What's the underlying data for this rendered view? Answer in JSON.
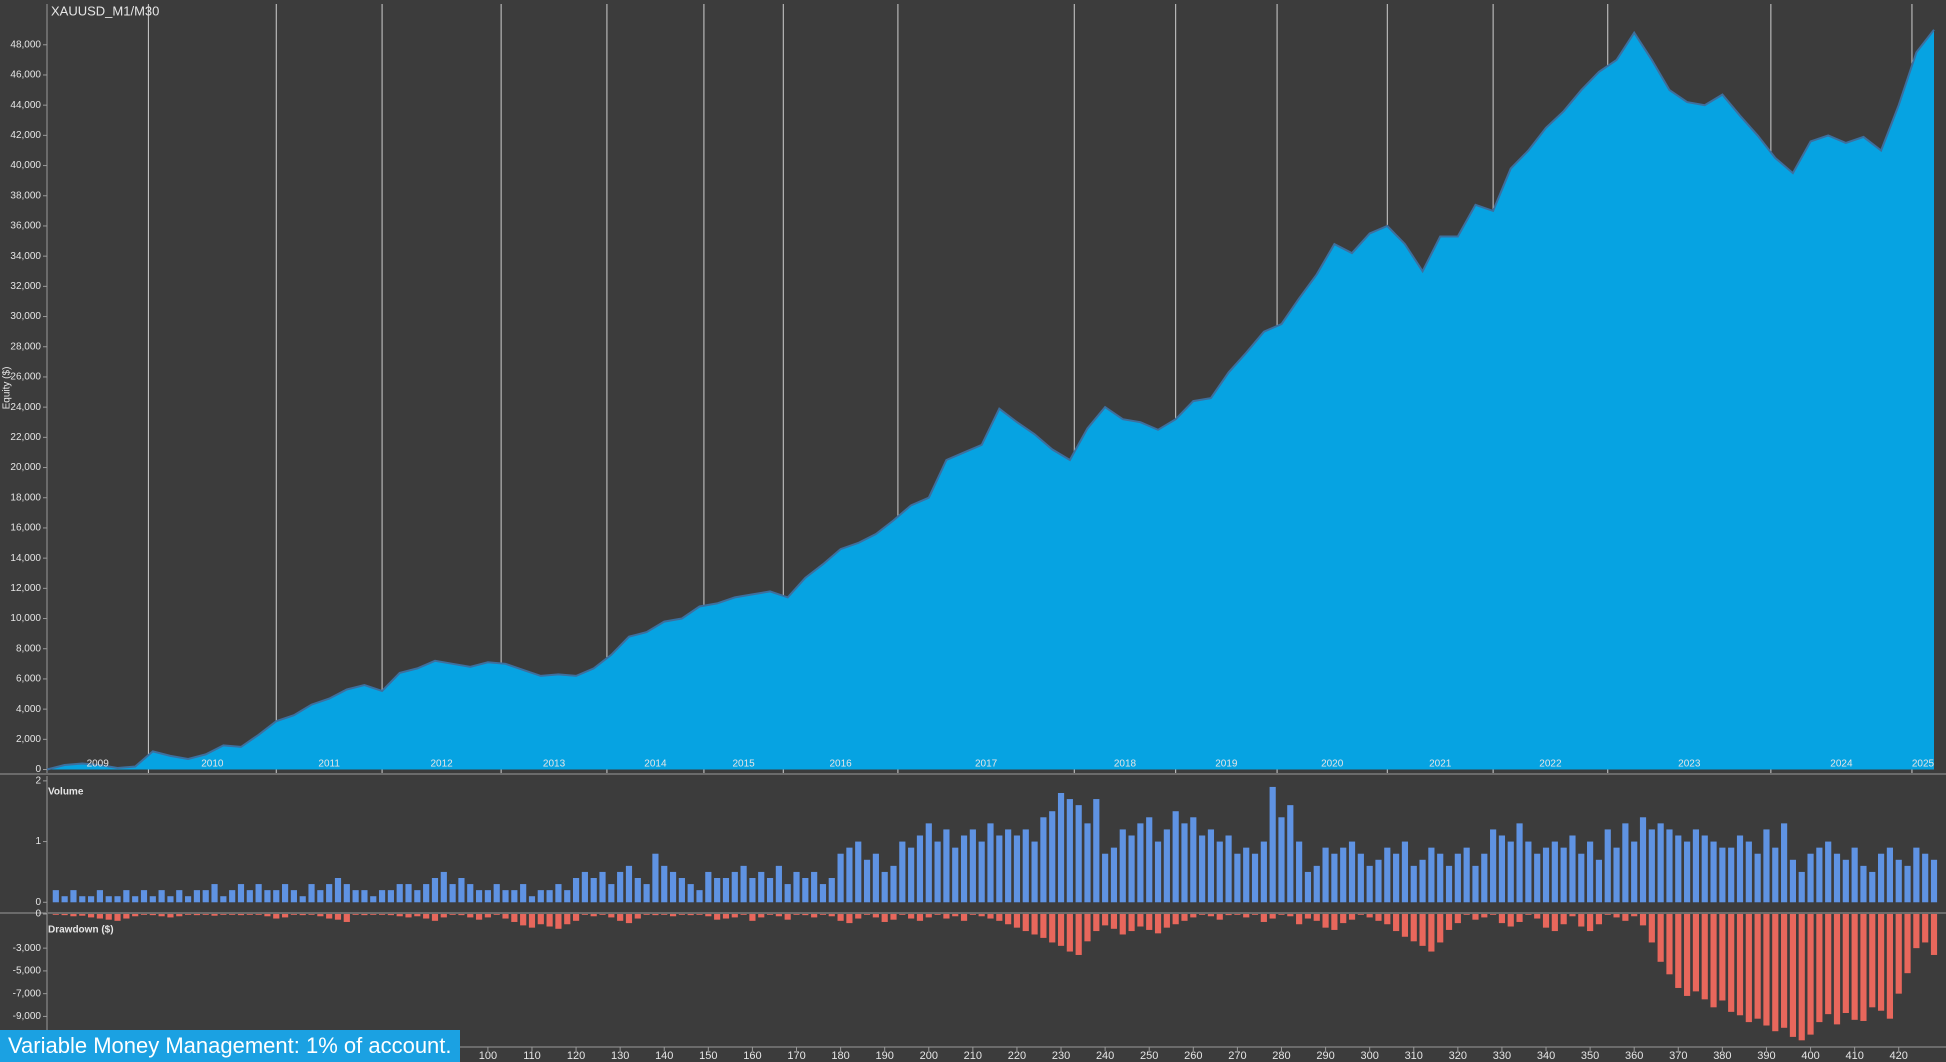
{
  "chart_data": [
    {
      "type": "area",
      "title": "XAUUSD_M1/M30",
      "y_label": "Equity ($)",
      "color": "#06a3e2",
      "line_color": "#3d6f9e",
      "xlim": [
        0,
        428
      ],
      "ylim": [
        -230,
        50700
      ],
      "yticks": [
        0,
        {
          "value": 2000,
          "label": "2,000"
        },
        {
          "value": 4000,
          "label": "4,000"
        },
        {
          "value": 6000,
          "label": "6,000"
        },
        {
          "value": 8000,
          "label": "8,000"
        },
        {
          "value": 10000,
          "label": "10,000"
        },
        {
          "value": 12000,
          "label": "12,000"
        },
        {
          "value": 14000,
          "label": "14,000"
        },
        {
          "value": 16000,
          "label": "16,000"
        },
        {
          "value": 18000,
          "label": "18,000"
        },
        {
          "value": 20000,
          "label": "20,000"
        },
        {
          "value": 22000,
          "label": "22,000"
        },
        {
          "value": 24000,
          "label": "24,000"
        },
        {
          "value": 26000,
          "label": "26,000"
        },
        {
          "value": 28000,
          "label": "28,000"
        },
        {
          "value": 30000,
          "label": "30,000"
        },
        {
          "value": 32000,
          "label": "32,000"
        },
        {
          "value": 34000,
          "label": "34,000"
        },
        {
          "value": 36000,
          "label": "36,000"
        },
        {
          "value": 38000,
          "label": "38,000"
        },
        {
          "value": 40000,
          "label": "40,000"
        },
        {
          "value": 42000,
          "label": "42,000"
        },
        {
          "value": 44000,
          "label": "44,000"
        },
        {
          "value": 46000,
          "label": "46,000"
        },
        {
          "value": 48000,
          "label": "48,000"
        }
      ],
      "years": [
        "2009",
        "2010",
        "2011",
        "2012",
        "2013",
        "2014",
        "2015",
        "2016",
        "2017",
        "2018",
        "2019",
        "2020",
        "2021",
        "2022",
        "2023",
        "2024",
        "2025"
      ],
      "year_starts": [
        23,
        52,
        76,
        103,
        127,
        149,
        167,
        193,
        233,
        256,
        279,
        304,
        328,
        354,
        391,
        423
      ],
      "x": [
        0,
        4,
        8,
        12,
        16,
        20,
        24,
        28,
        32,
        36,
        40,
        44,
        48,
        52,
        56,
        60,
        64,
        68,
        72,
        76,
        80,
        84,
        88,
        92,
        96,
        100,
        104,
        108,
        112,
        116,
        120,
        124,
        128,
        132,
        136,
        140,
        144,
        148,
        152,
        156,
        160,
        164,
        168,
        172,
        176,
        180,
        184,
        188,
        192,
        196,
        200,
        204,
        208,
        212,
        216,
        220,
        224,
        228,
        232,
        236,
        240,
        244,
        248,
        252,
        256,
        260,
        264,
        268,
        272,
        276,
        280,
        284,
        288,
        292,
        296,
        300,
        304,
        308,
        312,
        316,
        320,
        324,
        328,
        332,
        336,
        340,
        344,
        348,
        352,
        356,
        360,
        364,
        368,
        372,
        376,
        380,
        384,
        388,
        392,
        396,
        400,
        404,
        408,
        412,
        416,
        420,
        424,
        428
      ],
      "values": [
        0,
        300,
        400,
        300,
        100,
        200,
        1200,
        900,
        700,
        1000,
        1600,
        1500,
        2300,
        3200,
        3600,
        4300,
        4700,
        5300,
        5600,
        5200,
        6400,
        6700,
        7200,
        7000,
        6800,
        7100,
        7000,
        6600,
        6200,
        6300,
        6200,
        6700,
        7600,
        8800,
        9100,
        9800,
        10000,
        10800,
        11000,
        11400,
        11600,
        11800,
        11400,
        12700,
        13600,
        14600,
        15000,
        15600,
        16500,
        17500,
        18000,
        20500,
        21000,
        21500,
        23900,
        23000,
        22200,
        21200,
        20500,
        22600,
        24000,
        23200,
        23000,
        22500,
        23200,
        24400,
        24600,
        26300,
        27600,
        29000,
        29500,
        31200,
        32800,
        34800,
        34200,
        35500,
        36000,
        34800,
        33000,
        35300,
        35300,
        37400,
        37000,
        39800,
        41000,
        42500,
        43600,
        45000,
        46200,
        47000,
        48800,
        47000,
        45000,
        44200,
        44000,
        44700,
        43300,
        42000,
        40500,
        39500,
        41600,
        42000,
        41500,
        41900,
        41000,
        44000,
        47500,
        49000
      ]
    },
    {
      "type": "bar",
      "title": "Volume",
      "color": "#5f93e3",
      "xlim": [
        0,
        428
      ],
      "ylim": [
        -0.16,
        2.08
      ],
      "yticks": [
        0,
        1,
        2
      ],
      "x": [
        2,
        4,
        6,
        8,
        10,
        12,
        14,
        16,
        18,
        20,
        22,
        24,
        26,
        28,
        30,
        32,
        34,
        36,
        38,
        40,
        42,
        44,
        46,
        48,
        50,
        52,
        54,
        56,
        58,
        60,
        62,
        64,
        66,
        68,
        70,
        72,
        74,
        76,
        78,
        80,
        82,
        84,
        86,
        88,
        90,
        92,
        94,
        96,
        98,
        100,
        102,
        104,
        106,
        108,
        110,
        112,
        114,
        116,
        118,
        120,
        122,
        124,
        126,
        128,
        130,
        132,
        134,
        136,
        138,
        140,
        142,
        144,
        146,
        148,
        150,
        152,
        154,
        156,
        158,
        160,
        162,
        164,
        166,
        168,
        170,
        172,
        174,
        176,
        178,
        180,
        182,
        184,
        186,
        188,
        190,
        192,
        194,
        196,
        198,
        200,
        202,
        204,
        206,
        208,
        210,
        212,
        214,
        216,
        218,
        220,
        222,
        224,
        226,
        228,
        230,
        232,
        234,
        236,
        238,
        240,
        242,
        244,
        246,
        248,
        250,
        252,
        254,
        256,
        258,
        260,
        262,
        264,
        266,
        268,
        270,
        272,
        274,
        276,
        278,
        280,
        282,
        284,
        286,
        288,
        290,
        292,
        294,
        296,
        298,
        300,
        302,
        304,
        306,
        308,
        310,
        312,
        314,
        316,
        318,
        320,
        322,
        324,
        326,
        328,
        330,
        332,
        334,
        336,
        338,
        340,
        342,
        344,
        346,
        348,
        350,
        352,
        354,
        356,
        358,
        360,
        362,
        364,
        366,
        368,
        370,
        372,
        374,
        376,
        378,
        380,
        382,
        384,
        386,
        388,
        390,
        392,
        394,
        396,
        398,
        400,
        402,
        404,
        406,
        408,
        410,
        412,
        414,
        416,
        418,
        420,
        422,
        424,
        426,
        428
      ],
      "values": [
        0.2,
        0.1,
        0.2,
        0.1,
        0.1,
        0.2,
        0.1,
        0.1,
        0.2,
        0.1,
        0.2,
        0.1,
        0.2,
        0.1,
        0.2,
        0.1,
        0.2,
        0.2,
        0.3,
        0.1,
        0.2,
        0.3,
        0.2,
        0.3,
        0.2,
        0.2,
        0.3,
        0.2,
        0.1,
        0.3,
        0.2,
        0.3,
        0.4,
        0.3,
        0.2,
        0.2,
        0.1,
        0.2,
        0.2,
        0.3,
        0.3,
        0.2,
        0.3,
        0.4,
        0.5,
        0.3,
        0.4,
        0.3,
        0.2,
        0.2,
        0.3,
        0.2,
        0.2,
        0.3,
        0.1,
        0.2,
        0.2,
        0.3,
        0.2,
        0.4,
        0.5,
        0.4,
        0.5,
        0.3,
        0.5,
        0.6,
        0.4,
        0.3,
        0.8,
        0.6,
        0.5,
        0.4,
        0.3,
        0.2,
        0.5,
        0.4,
        0.4,
        0.5,
        0.6,
        0.4,
        0.5,
        0.4,
        0.6,
        0.3,
        0.5,
        0.4,
        0.5,
        0.3,
        0.4,
        0.8,
        0.9,
        1.0,
        0.7,
        0.8,
        0.5,
        0.6,
        1.0,
        0.9,
        1.1,
        1.3,
        1.0,
        1.2,
        0.9,
        1.1,
        1.2,
        1.0,
        1.3,
        1.1,
        1.2,
        1.1,
        1.2,
        1.0,
        1.4,
        1.5,
        1.8,
        1.7,
        1.6,
        1.3,
        1.7,
        0.8,
        0.9,
        1.2,
        1.1,
        1.3,
        1.4,
        1.0,
        1.2,
        1.5,
        1.3,
        1.4,
        1.1,
        1.2,
        1.0,
        1.1,
        0.8,
        0.9,
        0.8,
        1.0,
        1.9,
        1.4,
        1.6,
        1.0,
        0.5,
        0.6,
        0.9,
        0.8,
        0.9,
        1.0,
        0.8,
        0.6,
        0.7,
        0.9,
        0.8,
        1.0,
        0.6,
        0.7,
        0.9,
        0.8,
        0.6,
        0.8,
        0.9,
        0.6,
        0.8,
        1.2,
        1.1,
        1.0,
        1.3,
        1.0,
        0.8,
        0.9,
        1.0,
        0.9,
        1.1,
        0.8,
        1.0,
        0.7,
        1.2,
        0.9,
        1.3,
        1.0,
        1.4,
        1.2,
        1.3,
        1.2,
        1.1,
        1.0,
        1.2,
        1.1,
        1.0,
        0.9,
        0.9,
        1.1,
        1.0,
        0.8,
        1.2,
        0.9,
        1.3,
        0.7,
        0.5,
        0.8,
        0.9,
        1.0,
        0.8,
        0.7,
        0.9,
        0.6,
        0.5,
        0.8,
        0.9,
        0.7,
        0.6,
        0.9,
        0.8,
        0.7
      ]
    },
    {
      "type": "bar",
      "title": "Drawdown ($)",
      "color": "#e8675c",
      "xlim": [
        0,
        428
      ],
      "ylim": [
        -11600,
        0
      ],
      "yticks": [
        0,
        {
          "value": -3000,
          "label": "-3,000"
        },
        {
          "value": -5000,
          "label": "-5,000"
        },
        {
          "value": -7000,
          "label": "-7,000"
        },
        {
          "value": -9000,
          "label": "-9,000"
        }
      ],
      "xticks": [
        100,
        110,
        120,
        130,
        140,
        150,
        160,
        170,
        180,
        190,
        200,
        210,
        220,
        230,
        240,
        250,
        260,
        270,
        280,
        290,
        300,
        310,
        320,
        330,
        340,
        350,
        360,
        370,
        380,
        390,
        400,
        410,
        420
      ],
      "x": [
        2,
        4,
        6,
        8,
        10,
        12,
        14,
        16,
        18,
        20,
        22,
        24,
        26,
        28,
        30,
        32,
        34,
        36,
        38,
        40,
        42,
        44,
        46,
        48,
        50,
        52,
        54,
        56,
        58,
        60,
        62,
        64,
        66,
        68,
        70,
        72,
        74,
        76,
        78,
        80,
        82,
        84,
        86,
        88,
        90,
        92,
        94,
        96,
        98,
        100,
        102,
        104,
        106,
        108,
        110,
        112,
        114,
        116,
        118,
        120,
        122,
        124,
        126,
        128,
        130,
        132,
        134,
        136,
        138,
        140,
        142,
        144,
        146,
        148,
        150,
        152,
        154,
        156,
        158,
        160,
        162,
        164,
        166,
        168,
        170,
        172,
        174,
        176,
        178,
        180,
        182,
        184,
        186,
        188,
        190,
        192,
        194,
        196,
        198,
        200,
        202,
        204,
        206,
        208,
        210,
        212,
        214,
        216,
        218,
        220,
        222,
        224,
        226,
        228,
        230,
        232,
        234,
        236,
        238,
        240,
        242,
        244,
        246,
        248,
        250,
        252,
        254,
        256,
        258,
        260,
        262,
        264,
        266,
        268,
        270,
        272,
        274,
        276,
        278,
        280,
        282,
        284,
        286,
        288,
        290,
        292,
        294,
        296,
        298,
        300,
        302,
        304,
        306,
        308,
        310,
        312,
        314,
        316,
        318,
        320,
        322,
        324,
        326,
        328,
        330,
        332,
        334,
        336,
        338,
        340,
        342,
        344,
        346,
        348,
        350,
        352,
        354,
        356,
        358,
        360,
        362,
        364,
        366,
        368,
        370,
        372,
        374,
        376,
        378,
        380,
        382,
        384,
        386,
        388,
        390,
        392,
        394,
        396,
        398,
        400,
        402,
        404,
        406,
        408,
        410,
        412,
        414,
        416,
        418,
        420,
        422,
        424,
        426,
        428
      ],
      "values": [
        0,
        -100,
        -200,
        -150,
        -300,
        -400,
        -500,
        -600,
        -400,
        -200,
        0,
        -100,
        -200,
        -300,
        -200,
        0,
        -100,
        0,
        -150,
        0,
        0,
        -100,
        -50,
        0,
        -200,
        -400,
        -300,
        0,
        -100,
        0,
        -200,
        -400,
        -500,
        -700,
        0,
        -100,
        -50,
        0,
        -100,
        -200,
        -300,
        -200,
        -400,
        -600,
        -300,
        0,
        -100,
        -300,
        -500,
        -300,
        0,
        -400,
        -700,
        -1000,
        -1200,
        -900,
        -1100,
        -1300,
        -900,
        -600,
        0,
        -200,
        0,
        -300,
        -600,
        -800,
        -400,
        0,
        -100,
        0,
        -200,
        0,
        -100,
        0,
        -200,
        -500,
        -400,
        -300,
        0,
        -600,
        -300,
        0,
        -200,
        -500,
        0,
        -100,
        -300,
        0,
        -200,
        -600,
        -800,
        -400,
        0,
        -300,
        -700,
        -500,
        0,
        -400,
        -600,
        -300,
        0,
        -400,
        -200,
        -600,
        0,
        -200,
        -400,
        -600,
        -900,
        -1200,
        -1500,
        -1800,
        -2100,
        -2500,
        -2800,
        -3300,
        -3600,
        -2400,
        -1500,
        -1000,
        -1300,
        -1800,
        -1500,
        -1100,
        -1400,
        -1700,
        -1200,
        -900,
        -600,
        -300,
        0,
        -200,
        -500,
        -100,
        0,
        -300,
        0,
        -700,
        -400,
        0,
        -200,
        -900,
        -400,
        -600,
        -1200,
        -1400,
        -800,
        -500,
        0,
        -300,
        -600,
        -900,
        -1500,
        -2000,
        -2400,
        -2800,
        -3300,
        -2500,
        -1400,
        -800,
        0,
        -500,
        -300,
        0,
        -800,
        -1100,
        -700,
        0,
        -400,
        -1200,
        -1500,
        -900,
        -200,
        -1100,
        -1500,
        -900,
        0,
        -300,
        -600,
        -200,
        -1000,
        -2500,
        -4200,
        -5300,
        -6500,
        -7200,
        -6800,
        -7500,
        -8200,
        -7600,
        -8600,
        -8900,
        -9500,
        -9200,
        -9800,
        -10300,
        -10000,
        -10800,
        -11100,
        -10600,
        -9500,
        -8800,
        -9700,
        -8700,
        -9300,
        -9400,
        -8200,
        -8500,
        -9200,
        -7000,
        -5200,
        -3000,
        -2500,
        -3600
      ]
    }
  ],
  "footer": "Variable Money Management: 1% of account."
}
